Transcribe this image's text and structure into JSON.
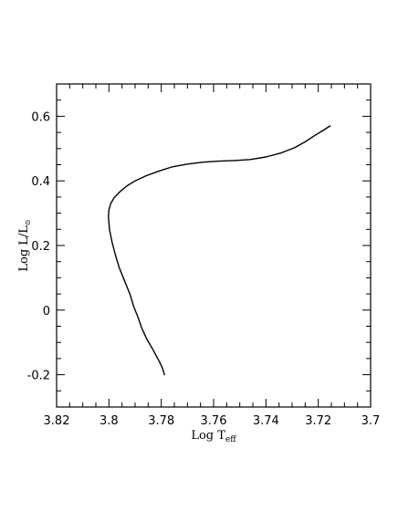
{
  "chart_data": {
    "type": "line",
    "title": "",
    "xlabel": "Log T",
    "xlabel_sub": "eff",
    "ylabel": "Log L/L",
    "ylabel_sub": "⊙",
    "xlim": [
      3.82,
      3.7
    ],
    "ylim": [
      -0.3,
      0.7
    ],
    "x_inverted": true,
    "grid": false,
    "legend": "none",
    "x_ticks": [
      {
        "value": 3.82,
        "label": "3.82"
      },
      {
        "value": 3.8,
        "label": "3.8"
      },
      {
        "value": 3.78,
        "label": "3.78"
      },
      {
        "value": 3.76,
        "label": "3.76"
      },
      {
        "value": 3.74,
        "label": "3.74"
      },
      {
        "value": 3.72,
        "label": "3.72"
      },
      {
        "value": 3.7,
        "label": "3.7"
      }
    ],
    "y_ticks": [
      {
        "value": 0.6,
        "label": "0.6"
      },
      {
        "value": 0.4,
        "label": "0.4"
      },
      {
        "value": 0.2,
        "label": "0.2"
      },
      {
        "value": 0.0,
        "label": "0"
      },
      {
        "value": -0.2,
        "label": "-0.2"
      }
    ],
    "series": [
      {
        "color": "#000000",
        "x": [
          3.7788,
          3.7795,
          3.781,
          3.783,
          3.7855,
          3.7875,
          3.789,
          3.7905,
          3.792,
          3.794,
          3.796,
          3.7975,
          3.7988,
          3.7998,
          3.8002,
          3.8,
          3.7993,
          3.798,
          3.796,
          3.793,
          3.79,
          3.786,
          3.781,
          3.776,
          3.77,
          3.764,
          3.758,
          3.752,
          3.746,
          3.74,
          3.734,
          3.729,
          3.725,
          3.722,
          3.718,
          3.7155
        ],
        "y": [
          -0.2,
          -0.18,
          -0.155,
          -0.125,
          -0.09,
          -0.055,
          -0.02,
          0.01,
          0.05,
          0.09,
          0.13,
          0.17,
          0.21,
          0.25,
          0.29,
          0.31,
          0.33,
          0.348,
          0.365,
          0.385,
          0.4,
          0.415,
          0.43,
          0.443,
          0.452,
          0.458,
          0.461,
          0.463,
          0.466,
          0.474,
          0.487,
          0.503,
          0.521,
          0.537,
          0.557,
          0.57
        ]
      }
    ]
  }
}
